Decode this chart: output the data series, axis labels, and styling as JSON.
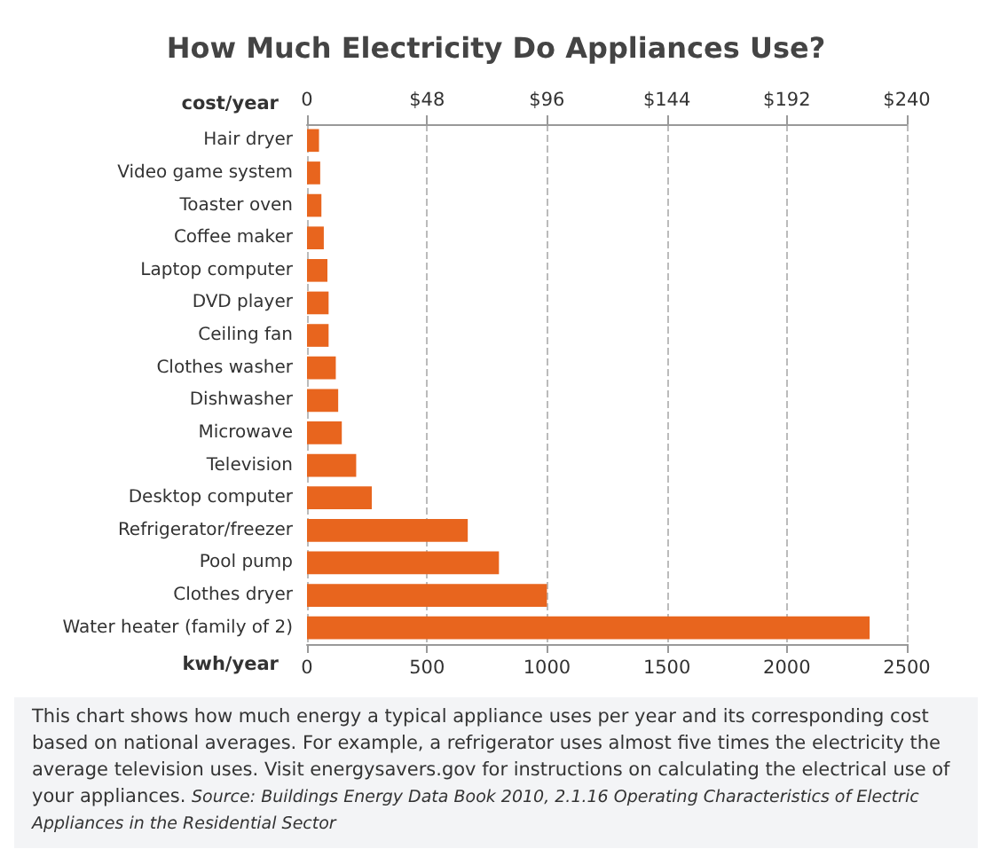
{
  "chart_data": {
    "type": "bar",
    "orientation": "horizontal",
    "title": "How Much Electricity Do Appliances Use?",
    "categories": [
      "Hair dryer",
      "Video game system",
      "Toaster oven",
      "Coffee maker",
      "Laptop computer",
      "DVD player",
      "Ceiling fan",
      "Clothes washer",
      "Dishwasher",
      "Microwave",
      "Television",
      "Desktop computer",
      "Refrigerator/freezer",
      "Pool pump",
      "Clothes dryer",
      "Water heater (family of 2)"
    ],
    "values": [
      50,
      55,
      60,
      70,
      85,
      90,
      90,
      120,
      130,
      145,
      205,
      270,
      670,
      800,
      1000,
      2345
    ],
    "color": "#e8651e",
    "xlabel": "kwh/year",
    "xlim": [
      0,
      2500
    ],
    "xticks": [
      0,
      500,
      1000,
      1500,
      2000,
      2500
    ],
    "x2label": "cost/year",
    "x2lim": [
      0,
      240
    ],
    "x2ticks": [
      0,
      {
        "value": 48,
        "label": "$48"
      },
      {
        "value": 96,
        "label": "$96"
      },
      {
        "value": 144,
        "label": "$144"
      },
      {
        "value": 192,
        "label": "$192"
      },
      {
        "value": 240,
        "label": "$240"
      }
    ],
    "grid": "x",
    "annotations": [
      "This chart shows how much energy a typical appliance uses per year and its corresponding cost based on national averages. For example, a refrigerator uses almost five times the electricity the average television uses. Visit energysavers.gov for instructions on calculating the electrical use of your appliances.",
      "Source: Buildings Energy Data Book 2010, 2.1.16 Operating Characteristics of Electric Appliances in the Residential Sector"
    ]
  }
}
